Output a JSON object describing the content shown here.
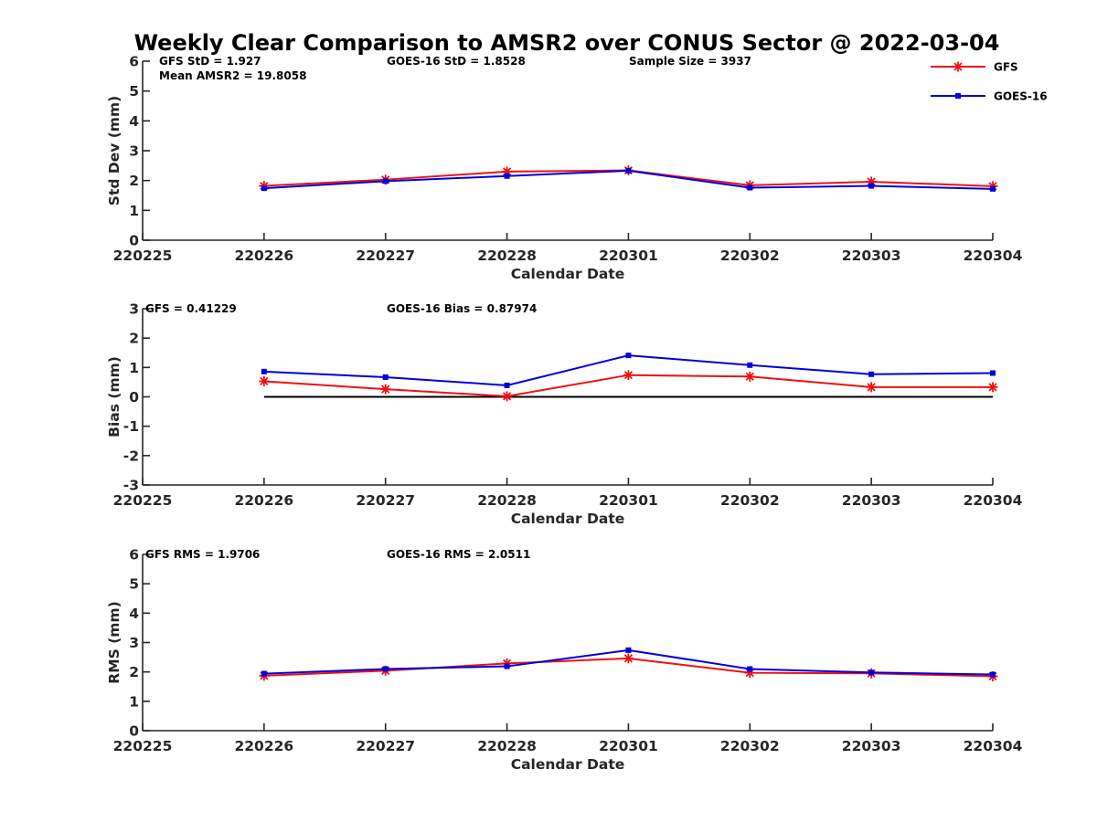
{
  "figure_title": "Weekly Clear Comparison to AMSR2 over CONUS Sector @ 2022-03-04",
  "legend": [
    {
      "name": "GFS",
      "color": "#ee1111",
      "marker": "asterisk"
    },
    {
      "name": "GOES-16",
      "color": "#0000dd",
      "marker": "square"
    }
  ],
  "chart_data": [
    {
      "type": "line",
      "id": "stddev",
      "ylabel": "Std Dev (mm)",
      "xlabel": "Calendar Date",
      "ylim": [
        0,
        6
      ],
      "yticks": [
        0,
        1,
        2,
        3,
        4,
        5,
        6
      ],
      "categories": [
        "220225",
        "220226",
        "220227",
        "220228",
        "220301",
        "220302",
        "220303",
        "220304"
      ],
      "annotations": [
        {
          "text": "GFS StD = 1.927"
        },
        {
          "text": "GOES-16 StD = 1.8528"
        },
        {
          "text": "Sample Size = 3937"
        },
        {
          "text": "Mean AMSR2 = 19.8058"
        }
      ],
      "zero_line": false,
      "series": [
        {
          "name": "GFS",
          "values": [
            null,
            1.82,
            2.03,
            2.3,
            2.34,
            1.84,
            1.96,
            1.81
          ]
        },
        {
          "name": "GOES-16",
          "values": [
            null,
            1.74,
            1.98,
            2.15,
            2.33,
            1.76,
            1.82,
            1.72
          ]
        }
      ]
    },
    {
      "type": "line",
      "id": "bias",
      "ylabel": "Bias (mm)",
      "xlabel": "Calendar Date",
      "ylim": [
        -3,
        3
      ],
      "yticks": [
        -3,
        -2,
        -1,
        0,
        1,
        2,
        3
      ],
      "categories": [
        "220225",
        "220226",
        "220227",
        "220228",
        "220301",
        "220302",
        "220303",
        "220304"
      ],
      "annotations": [
        {
          "text": "GFS = 0.41229"
        },
        {
          "text": "GOES-16 Bias  = 0.87974"
        }
      ],
      "zero_line": true,
      "series": [
        {
          "name": "GFS",
          "values": [
            null,
            0.53,
            0.26,
            0.02,
            0.74,
            0.69,
            0.33,
            0.33
          ]
        },
        {
          "name": "GOES-16",
          "values": [
            null,
            0.86,
            0.67,
            0.39,
            1.41,
            1.08,
            0.77,
            0.81
          ]
        }
      ]
    },
    {
      "type": "line",
      "id": "rms",
      "ylabel": "RMS (mm)",
      "xlabel": "Calendar Date",
      "ylim": [
        0,
        6
      ],
      "yticks": [
        0,
        1,
        2,
        3,
        4,
        5,
        6
      ],
      "categories": [
        "220225",
        "220226",
        "220227",
        "220228",
        "220301",
        "220302",
        "220303",
        "220304"
      ],
      "annotations": [
        {
          "text": "GFS RMS = 1.9706"
        },
        {
          "text": "GOES-16 RMS = 2.0511"
        }
      ],
      "zero_line": false,
      "series": [
        {
          "name": "GFS",
          "values": [
            null,
            1.87,
            2.04,
            2.29,
            2.46,
            1.97,
            1.95,
            1.85
          ]
        },
        {
          "name": "GOES-16",
          "values": [
            null,
            1.94,
            2.1,
            2.19,
            2.74,
            2.1,
            1.98,
            1.91
          ]
        }
      ]
    }
  ]
}
